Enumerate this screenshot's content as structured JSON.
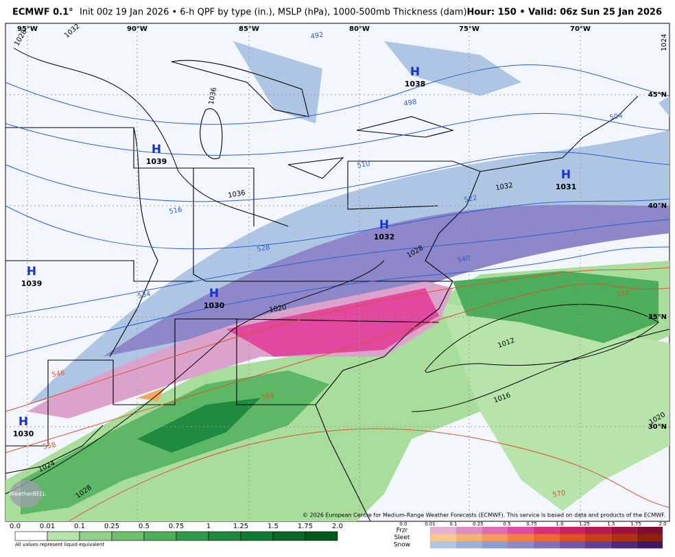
{
  "header": {
    "model": "ECMWF 0.1°",
    "description": "Init 00z 19 Jan 2026 • 6-h QPF by type (in.), MSLP (hPa), 1000-500mb Thickness (dam)",
    "valid": "Hour: 150 • Valid: 06z Sun 25 Jan 2026"
  },
  "map": {
    "longitude_labels": [
      "95°W",
      "90°W",
      "85°W",
      "80°W",
      "75°W",
      "70°W"
    ],
    "latitude_labels": [
      "45°N",
      "40°N",
      "35°N",
      "30°N"
    ],
    "highs": [
      {
        "symbol": "H",
        "pressure": "1038"
      },
      {
        "symbol": "H",
        "pressure": "1039"
      },
      {
        "symbol": "H",
        "pressure": "1031"
      },
      {
        "symbol": "H",
        "pressure": "1032"
      },
      {
        "symbol": "H",
        "pressure": "1039"
      },
      {
        "symbol": "H",
        "pressure": "1030"
      },
      {
        "symbol": "H",
        "pressure": "1030"
      }
    ],
    "isobar_labels": [
      "1028",
      "1032",
      "1036",
      "1036",
      "1032",
      "1028",
      "1020",
      "1012",
      "1016",
      "1020",
      "1024",
      "1028",
      "1024"
    ],
    "thickness_labels": [
      "492",
      "498",
      "504",
      "510",
      "516",
      "522",
      "528",
      "534",
      "540",
      "546",
      "552",
      "558",
      "564",
      "570"
    ],
    "copyright": "© 2026 European Centre for Medium-Range Weather Forecasts (ECMWF). This service is based on data and products of the ECMWF.",
    "logo": "WeatherBELL"
  },
  "legend": {
    "rain": {
      "ticks": [
        "0.0",
        "0.01",
        "0.1",
        "0.25",
        "0.5",
        "0.75",
        "1",
        "1.25",
        "1.5",
        "1.75",
        "2.0"
      ],
      "note": "All values represent liquid equivalent"
    },
    "ptype": {
      "types": [
        "Frzr",
        "Sleet",
        "Snow"
      ],
      "ticks": [
        "0.0",
        "0.01",
        "0.1",
        "0.25",
        "0.5",
        "0.75",
        "1.0",
        "1.25",
        "1.5",
        "1.75",
        "2.0"
      ]
    }
  }
}
